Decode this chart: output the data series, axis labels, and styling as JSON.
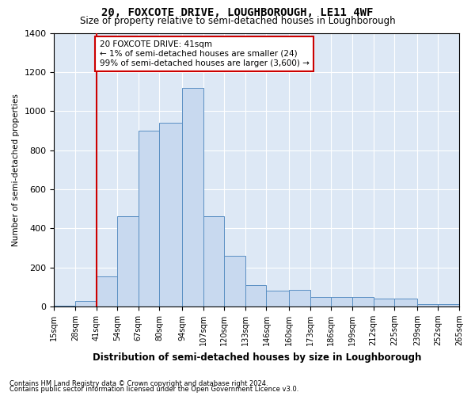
{
  "title": "20, FOXCOTE DRIVE, LOUGHBOROUGH, LE11 4WF",
  "subtitle": "Size of property relative to semi-detached houses in Loughborough",
  "xlabel": "Distribution of semi-detached houses by size in Loughborough",
  "ylabel": "Number of semi-detached properties",
  "footer_line1": "Contains HM Land Registry data © Crown copyright and database right 2024.",
  "footer_line2": "Contains public sector information licensed under the Open Government Licence v3.0.",
  "annotation_line1": "20 FOXCOTE DRIVE: 41sqm",
  "annotation_line2": "← 1% of semi-detached houses are smaller (24)",
  "annotation_line3": "99% of semi-detached houses are larger (3,600) →",
  "property_sqm": 41,
  "bar_left_edges": [
    15,
    28,
    41,
    54,
    67,
    80,
    94,
    107,
    120,
    133,
    146,
    160,
    173,
    186,
    199,
    212,
    225,
    239,
    252
  ],
  "bar_heights": [
    5,
    30,
    155,
    460,
    900,
    940,
    1120,
    460,
    260,
    110,
    80,
    85,
    50,
    50,
    50,
    40,
    40,
    10,
    10
  ],
  "bar_widths": [
    13,
    13,
    13,
    13,
    13,
    14,
    13,
    13,
    13,
    13,
    14,
    13,
    13,
    13,
    13,
    13,
    14,
    13,
    13
  ],
  "tick_positions": [
    15,
    28,
    41,
    54,
    67,
    80,
    94,
    107,
    120,
    133,
    146,
    160,
    173,
    186,
    199,
    212,
    225,
    239,
    252,
    265
  ],
  "tick_labels": [
    "15sqm",
    "28sqm",
    "41sqm",
    "54sqm",
    "67sqm",
    "80sqm",
    "94sqm",
    "107sqm",
    "120sqm",
    "133sqm",
    "146sqm",
    "160sqm",
    "173sqm",
    "186sqm",
    "199sqm",
    "212sqm",
    "225sqm",
    "239sqm",
    "252sqm",
    "265sqm"
  ],
  "bar_color": "#c8d9ef",
  "bar_edge_color": "#5a8fc3",
  "vline_color": "#cc0000",
  "vline_x": 41,
  "annotation_box_color": "#cc0000",
  "background_color": "#ffffff",
  "plot_bg_color": "#dde8f5",
  "grid_color": "#ffffff",
  "ylim": [
    0,
    1400
  ],
  "yticks": [
    0,
    200,
    400,
    600,
    800,
    1000,
    1200,
    1400
  ],
  "xlim": [
    15,
    265
  ]
}
